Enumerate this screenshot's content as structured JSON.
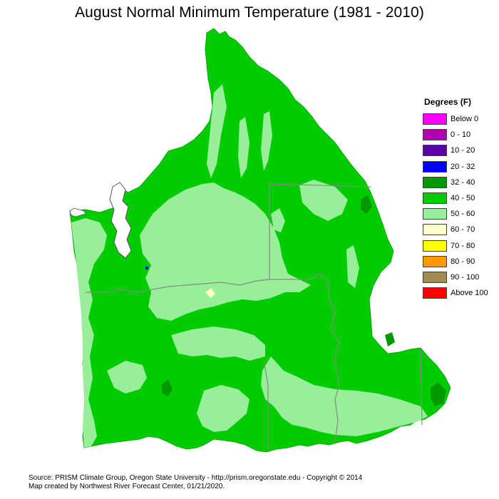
{
  "title": "August Normal Minimum Temperature (1981 - 2010)",
  "legend": {
    "title": "Degrees (F)",
    "items": [
      {
        "label": "Below 0",
        "color": "#ff00ff"
      },
      {
        "label": "0 - 10",
        "color": "#b000b0"
      },
      {
        "label": "10 - 20",
        "color": "#5a00aa"
      },
      {
        "label": "20 - 32",
        "color": "#0000ff"
      },
      {
        "label": "32 - 40",
        "color": "#009900"
      },
      {
        "label": "40 - 50",
        "color": "#00cc00"
      },
      {
        "label": "50 - 60",
        "color": "#99ee99"
      },
      {
        "label": "60 - 70",
        "color": "#ffffcc"
      },
      {
        "label": "70 - 80",
        "color": "#ffff00"
      },
      {
        "label": "80 - 90",
        "color": "#ff9900"
      },
      {
        "label": "90 - 100",
        "color": "#a08c50"
      },
      {
        "label": "Above 100",
        "color": "#ff0000"
      }
    ]
  },
  "footer": {
    "line1": "Source: PRISM Climate Group, Oregon State University - http://prism.oregonstate.edu - Copyright © 2014",
    "line2": "Map created by Northwest River Forecast Center, 01/21/2020."
  }
}
